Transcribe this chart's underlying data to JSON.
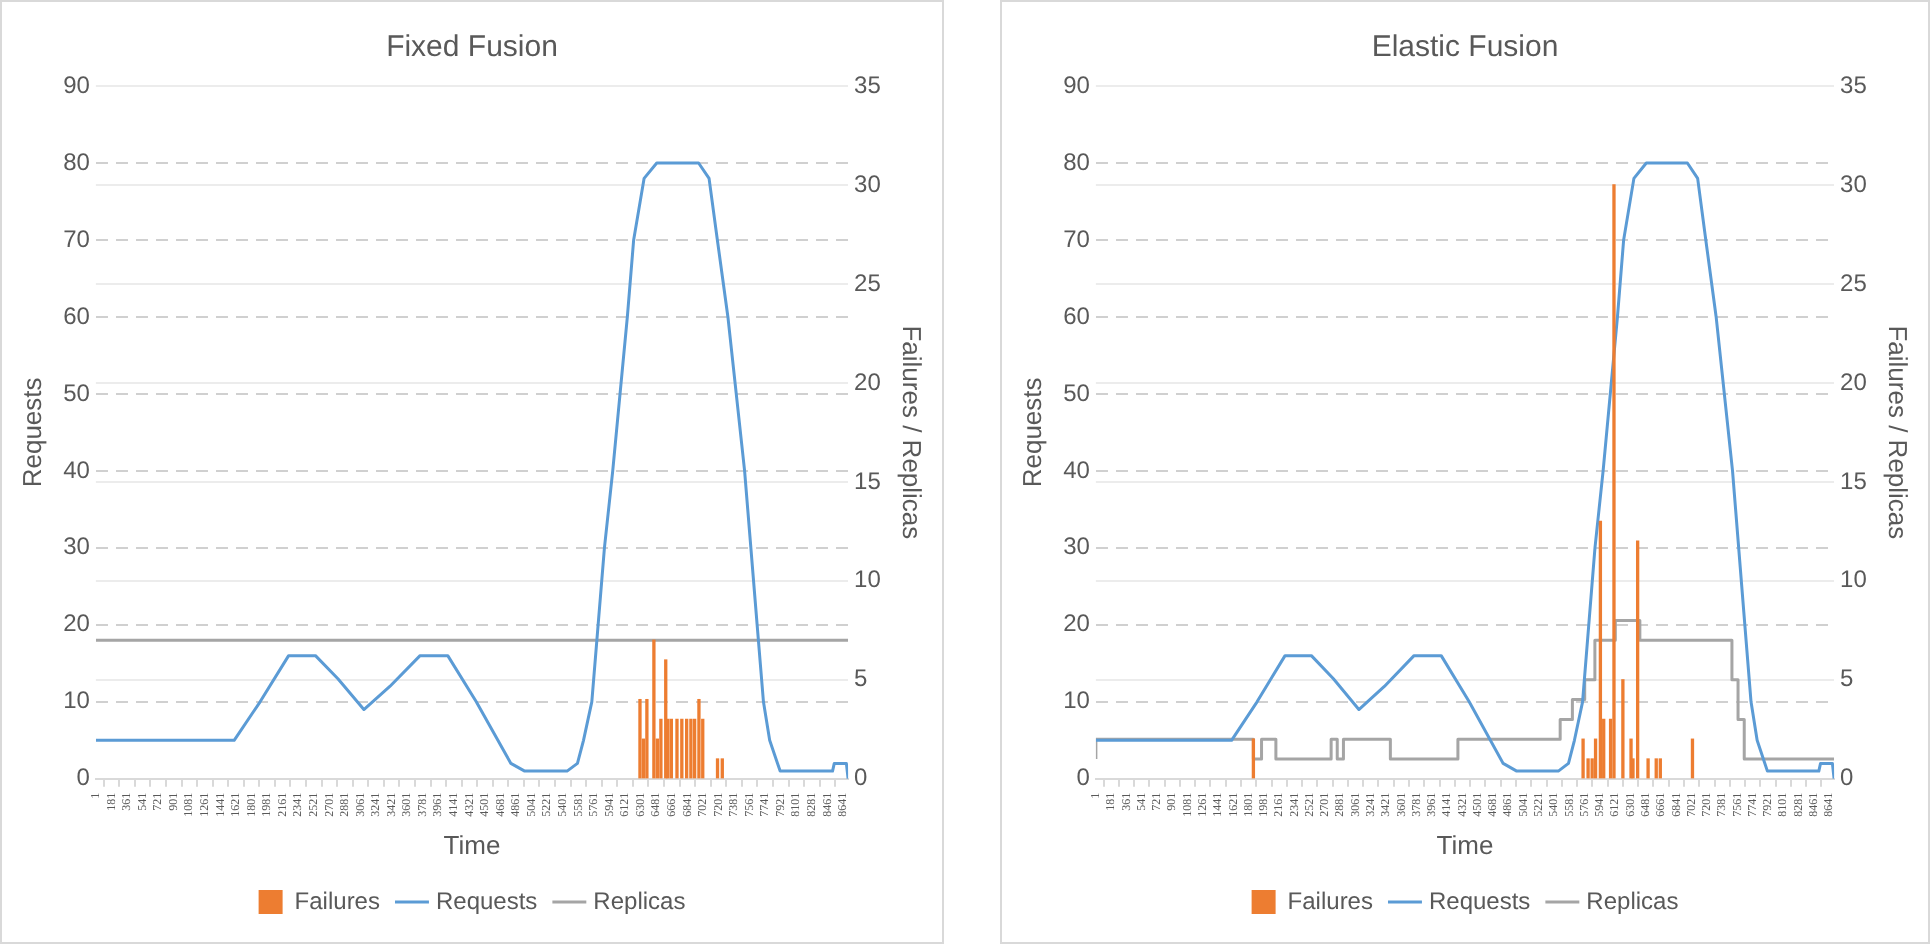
{
  "chart_data": [
    {
      "type": "line",
      "title": "Fixed Fusion",
      "xlabel": "Time",
      "ylabel": "Requests",
      "y2label": "Failures / Replicas",
      "xlim": [
        1,
        8700
      ],
      "xticks": [
        1,
        181,
        361,
        541,
        721,
        901,
        1081,
        1261,
        1441,
        1621,
        1801,
        1981,
        2161,
        2341,
        2521,
        2701,
        2881,
        3061,
        3241,
        3421,
        3601,
        3781,
        3961,
        4141,
        4321,
        4501,
        4681,
        4861,
        5041,
        5221,
        5401,
        5581,
        5761,
        5941,
        6121,
        6301,
        6481,
        6661,
        6841,
        7021,
        7201,
        7381,
        7561,
        7741,
        7921,
        8101,
        8281,
        8461,
        8641
      ],
      "ylim": [
        0,
        90
      ],
      "yticks": [
        0,
        10,
        20,
        30,
        40,
        50,
        60,
        70,
        80,
        90
      ],
      "y2lim": [
        0,
        35
      ],
      "y2ticks": [
        0,
        5,
        10,
        15,
        20,
        25,
        30,
        35
      ],
      "grid": "y",
      "legend": "bottom",
      "marker": "none",
      "line_style": "solid",
      "series": [
        {
          "name": "Failures",
          "type": "bar",
          "axis": "y2",
          "color": "#ed7d31",
          "x": [
            6293,
            6333,
            6373,
            6454,
            6494,
            6535,
            6591,
            6616,
            6656,
            6721,
            6777,
            6833,
            6882,
            6925,
            6975,
            7019,
            7190,
            7245
          ],
          "values": [
            4,
            2,
            4,
            7,
            2,
            3,
            6,
            3,
            3,
            3,
            3,
            3,
            3,
            3,
            4,
            3,
            1,
            1
          ]
        },
        {
          "name": "Requests",
          "axis": "y",
          "color": "#5b9bd5",
          "x": [
            1,
            1600,
            1900,
            2230,
            2540,
            2800,
            3100,
            3400,
            3750,
            4070,
            4400,
            4800,
            4960,
            5450,
            5570,
            5640,
            5736,
            5809,
            5882,
            5978,
            6147,
            6220,
            6341,
            6487,
            6971,
            7092,
            7188,
            7310,
            7503,
            7648,
            7721,
            7793,
            7914,
            8520,
            8540,
            8680,
            8700
          ],
          "values": [
            5,
            5,
            10,
            16,
            16,
            13,
            9,
            12,
            16,
            16,
            10,
            2,
            1,
            1,
            2,
            5,
            10,
            20,
            30,
            40,
            60,
            70,
            78,
            80,
            80,
            78,
            70,
            60,
            40,
            20,
            10,
            5,
            1,
            1,
            2,
            2,
            0
          ]
        },
        {
          "name": "Replicas",
          "type": "step",
          "axis": "y2",
          "color": "#a5a5a5",
          "x": [
            1,
            8700
          ],
          "values": [
            7,
            7
          ]
        }
      ]
    },
    {
      "type": "line",
      "title": "Elastic Fusion",
      "xlabel": "Time",
      "ylabel": "Requests",
      "y2label": "Failures / Replicas",
      "xlim": [
        1,
        8700
      ],
      "xticks": [
        1,
        181,
        361,
        541,
        721,
        901,
        1081,
        1261,
        1441,
        1621,
        1801,
        1981,
        2161,
        2341,
        2521,
        2701,
        2881,
        3061,
        3241,
        3421,
        3601,
        3781,
        3961,
        4141,
        4321,
        4501,
        4681,
        4861,
        5041,
        5221,
        5401,
        5581,
        5761,
        5941,
        6121,
        6301,
        6481,
        6661,
        6841,
        7021,
        7201,
        7381,
        7561,
        7741,
        7921,
        8101,
        8281,
        8461,
        8641
      ],
      "ylim": [
        0,
        90
      ],
      "yticks": [
        0,
        10,
        20,
        30,
        40,
        50,
        60,
        70,
        80,
        90
      ],
      "y2lim": [
        0,
        35
      ],
      "y2ticks": [
        0,
        5,
        10,
        15,
        20,
        25,
        30,
        35
      ],
      "grid": "y",
      "legend": "bottom",
      "marker": "none",
      "line_style": "solid",
      "series": [
        {
          "name": "Failures",
          "type": "bar",
          "axis": "y2",
          "color": "#ed7d31",
          "x": [
            1857,
            5742,
            5801,
            5849,
            5889,
            5946,
            5985,
            6066,
            6106,
            6211,
            6307,
            6330,
            6385,
            6508,
            6604,
            6652,
            7031
          ],
          "values": [
            2,
            2,
            1,
            1,
            2,
            13,
            3,
            3,
            30,
            5,
            2,
            1,
            12,
            1,
            1,
            1,
            2
          ]
        },
        {
          "name": "Requests",
          "axis": "y",
          "color": "#5b9bd5",
          "x": [
            1,
            1600,
            1900,
            2230,
            2540,
            2800,
            3100,
            3400,
            3750,
            4070,
            4400,
            4800,
            4960,
            5450,
            5570,
            5640,
            5736,
            5809,
            5882,
            5978,
            6147,
            6220,
            6341,
            6487,
            6971,
            7092,
            7188,
            7310,
            7503,
            7648,
            7721,
            7793,
            7914,
            8520,
            8540,
            8680,
            8700
          ],
          "values": [
            5,
            5,
            10,
            16,
            16,
            13,
            9,
            12,
            16,
            16,
            10,
            2,
            1,
            1,
            2,
            5,
            10,
            20,
            30,
            40,
            60,
            70,
            78,
            80,
            80,
            78,
            70,
            60,
            40,
            20,
            10,
            5,
            1,
            1,
            2,
            2,
            0
          ]
        },
        {
          "name": "Replicas",
          "type": "step",
          "axis": "y2",
          "color": "#a5a5a5",
          "x": [
            1,
            1857,
            1953,
            2122,
            2773,
            2845,
            2918,
            3471,
            4267,
            5472,
            5616,
            5761,
            5881,
            6122,
            6411,
            7496,
            7568,
            7641,
            7713,
            8700
          ],
          "values": [
            1,
            2,
            1,
            2,
            1,
            2,
            1,
            2,
            1,
            2,
            3,
            4,
            5,
            7,
            8,
            7,
            5,
            3,
            1,
            1
          ]
        }
      ]
    }
  ]
}
